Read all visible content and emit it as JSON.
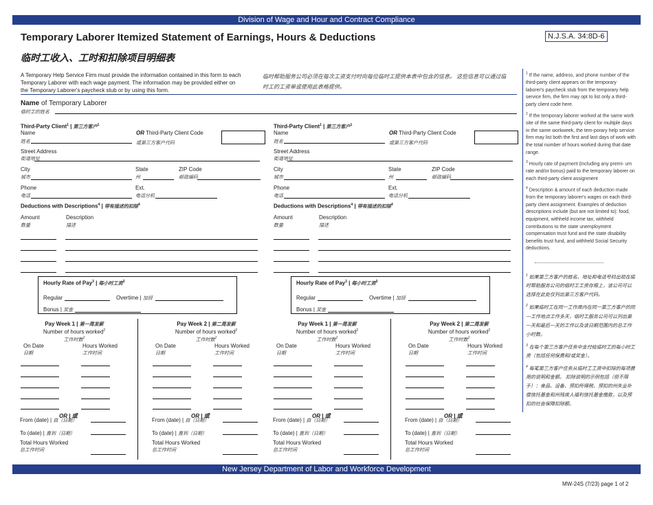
{
  "header": {
    "division": "Division of Wage and Hour and Contract Compliance",
    "title": "Temporary Laborer Itemized Statement of Earnings, Hours & Deductions",
    "title_zh": "临时工收入、工时和扣除项目明细表",
    "statute": "N.J.S.A. 34:8D-6"
  },
  "intro": {
    "en": "A Temporary Help Service Firm must provide the information contained in this form to each Temporary Laborer with each wage payment. The information may be provided either on the Temporary Laborer's paycheck stub or by using this form.",
    "zh": "临时帮助服务公司必须在每次工资支付时向每位临时工提供本表中包含的信息。 这些信息可以通过临时工的工资单或使用此表格提供。"
  },
  "laborer": {
    "label_bold": "Name",
    "label_rest": " of Temporary Laborer",
    "label_zh": "临时工的姓名"
  },
  "client": {
    "heading": "Third-Party Client",
    "heading_zh": "第三方客户",
    "name": "Name",
    "name_zh": "姓名",
    "or": "OR",
    "code": " Third-Party Client Code",
    "code_zh": "或第三方客户代码",
    "street": "Street Address",
    "street_zh": "街道地址",
    "city": "City",
    "city_zh": "城市",
    "state": "State",
    "state_zh": "州",
    "zip": "ZIP Code",
    "zip_zh": "邮政编码",
    "phone": "Phone",
    "phone_zh": "电话",
    "ext": "Ext.",
    "ext_zh": "电话分机",
    "deductions": "Deductions with Descriptions",
    "deductions_zh": "带有描述的扣除",
    "amount": "Amount",
    "amount_zh": "数量",
    "description": "Description",
    "description_zh": "描述",
    "rate": "Hourly Rate of Pay",
    "rate_zh": "每小时工资",
    "regular": "Regular",
    "overtime": "Overtime | ",
    "overtime_zh": "加班",
    "bonus": "Bonus | ",
    "bonus_zh": "奖金",
    "week1": "Pay Week 1 | ",
    "week1_zh": "第一周发薪",
    "week2": "Pay Week 2 | ",
    "week2_zh": "第二周发薪",
    "hours_num": "Number of hours worked",
    "hours_num_zh": "工作时数",
    "on_date": "On Date",
    "on_date_zh": "日期",
    "hours_worked": "Hours Worked",
    "hours_worked_zh": "工作时间",
    "or_zh": "OR | 或",
    "from": "From (date) | ",
    "from_zh": "自（日期）",
    "to": "To (date) | ",
    "to_zh": "直到（日期）",
    "total": "Total Hours Worked",
    "total_zh": "总工作时间"
  },
  "footnotes": {
    "en": [
      "If the name, address, and phone number of the third-party client appears on the temporary laborer's paycheck stub from the temporary help service firm, the firm may opt to list only a third-party client code here.",
      "If the temporary laborer worked at the same work site of the same third-party client for multiple days in the same workweek, the tem-porary help service firm may list both the first and last days of work with the total number of hours worked during that date range.",
      "Hourly rate of payment (including any premi- um rate and/or bonus) paid to the temporary laborer on each third-party client assignment",
      "Description & amount of each deduction made from the temporary laborer's wages on each third-party client assignment. Examples of deduction descriptions include (but are not limited to): food, equipment, withheld income tax, withheld contributions to the state unemployment compensation trust fund and the state disability benefits trust fund, and withheld Social Security deductions."
    ],
    "zh": [
      "如果第三方客户的姓名、地址和电话号码出现在临时帮助服务公司的临时工工资存根上，该公司可以选择在此处仅列出第三方客户代码。",
      "如果临时工在同一工作周内在同一第三方客户的同一工作地点工作多天，临时工服务公司可以列出第一天和最后一天的工作以及该日期范围内的总工作小时数。",
      "在每个第三方客户任务中支付给临时工的每小时工资（包括任何保费和/或奖金）。",
      "每笔第三方客户任务从临时工工资中扣除的每项费用的说明和金额。 扣除说明的示例包括（但不限于）：食品、设备、预扣所得税、预扣的州失业补偿信托基金和州残疾人福利信托基金缴款，以及预扣的社会保障扣除额。"
    ]
  },
  "footer": {
    "department": "New Jersey Department of Labor and Workforce Development",
    "form_id": "MW-24S (7/23) page 1 of 2"
  }
}
